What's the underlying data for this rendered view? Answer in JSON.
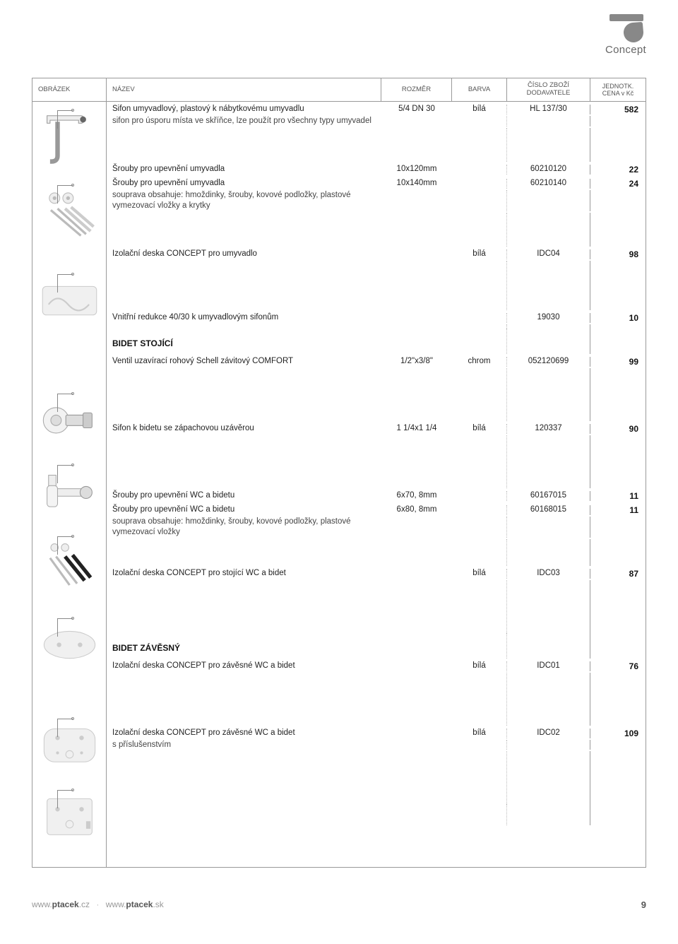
{
  "brand": "Concept",
  "header": {
    "col_image": "OBRÁZEK",
    "col_name": "NÁZEV",
    "col_dim": "ROZMĚR",
    "col_color": "BARVA",
    "col_supplier_l1": "ČÍSLO ZBOŽÍ",
    "col_supplier_l2": "DODAVATELE",
    "col_price_l1": "JEDNOTK.",
    "col_price_l2": "CENA v Kč"
  },
  "rows": [
    {
      "lines": [
        {
          "name": "Sifon umyvadlový, plastový k nábytkovému umyvadlu",
          "dim": "5/4 DN 30",
          "color": "bílá",
          "sup": "HL 137/30",
          "price": "582"
        }
      ],
      "desc": "sifon pro úsporu místa ve skříňce, lze použít pro všechny typy umyvadel"
    },
    {
      "lines": [
        {
          "name": "Šrouby pro upevnění umyvadla",
          "dim": "10x120mm",
          "color": "",
          "sup": "60210120",
          "price": "22"
        },
        {
          "name": "Šrouby pro upevnění umyvadla",
          "dim": "10x140mm",
          "color": "",
          "sup": "60210140",
          "price": "24"
        }
      ],
      "desc": "souprava obsahuje: hmoždinky, šrouby, kovové podložky, plastové vymezovací vložky a krytky"
    },
    {
      "lines": [
        {
          "name": "Izolační deska CONCEPT pro umyvadlo",
          "dim": "",
          "color": "bílá",
          "sup": "IDC04",
          "price": "98"
        }
      ],
      "desc": ""
    },
    {
      "lines": [
        {
          "name": "Vnitřní redukce 40/30 k umyvadlovým sifonům",
          "dim": "",
          "color": "",
          "sup": "19030",
          "price": "10"
        }
      ],
      "desc": "",
      "noimg": true
    }
  ],
  "section1_title": "BIDET STOJÍCÍ",
  "section1_rows": [
    {
      "lines": [
        {
          "name": "Ventil uzavírací rohový Schell závitový COMFORT",
          "dim": "1/2\"x3/8\"",
          "color": "chrom",
          "sup": "052120699",
          "price": "99"
        }
      ],
      "desc": ""
    },
    {
      "lines": [
        {
          "name": "Sifon k bidetu se zápachovou uzávěrou",
          "dim": "1 1/4x1 1/4",
          "color": "bílá",
          "sup": "120337",
          "price": "90"
        }
      ],
      "desc": ""
    },
    {
      "lines": [
        {
          "name": "Šrouby pro upevnění WC a bidetu",
          "dim": "6x70, 8mm",
          "color": "",
          "sup": "60167015",
          "price": "11"
        },
        {
          "name": "Šrouby pro upevnění WC a bidetu",
          "dim": "6x80, 8mm",
          "color": "",
          "sup": "60168015",
          "price": "11"
        }
      ],
      "desc": "souprava obsahuje: hmoždinky, šrouby, kovové podložky, plastové vymezovací vložky"
    },
    {
      "lines": [
        {
          "name": "Izolační deska CONCEPT pro stojící WC a bidet",
          "dim": "",
          "color": "bílá",
          "sup": "IDC03",
          "price": "87"
        }
      ],
      "desc": ""
    }
  ],
  "section2_title": "BIDET ZÁVĚSNÝ",
  "section2_rows": [
    {
      "lines": [
        {
          "name": "Izolační deska CONCEPT pro závěsné WC a bidet",
          "dim": "",
          "color": "bílá",
          "sup": "IDC01",
          "price": "76"
        }
      ],
      "desc": ""
    },
    {
      "lines": [
        {
          "name": "Izolační deska CONCEPT pro závěsné WC a bidet",
          "dim": "",
          "color": "bílá",
          "sup": "IDC02",
          "price": "109"
        }
      ],
      "desc": "s příslušenstvím"
    }
  ],
  "footer": {
    "url1_pre": "www.",
    "url1_bold": "ptacek",
    "url1_suf": ".cz",
    "url2_pre": "www.",
    "url2_bold": "ptacek",
    "url2_suf": ".sk",
    "page": "9"
  },
  "icons": {
    "sifon1": "sifon",
    "screws1": "screws",
    "plate1": "plate-curve",
    "valve": "valve",
    "bottle": "bottle-trap",
    "screws2": "screws-b",
    "plate2": "plate-oval",
    "plate3": "plate-rounded",
    "plate4": "plate-square"
  }
}
